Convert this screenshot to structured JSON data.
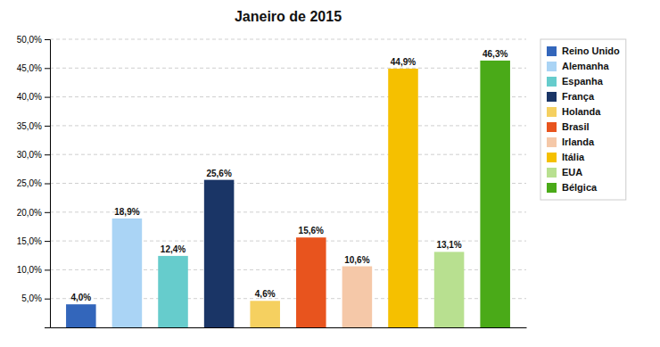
{
  "chart_data": {
    "type": "bar",
    "title": "Janeiro de 2015",
    "categories": [
      "Reino Unido",
      "Alemanha",
      "Espanha",
      "França",
      "Holanda",
      "Brasil",
      "Irlanda",
      "Itália",
      "EUA",
      "Bélgica"
    ],
    "values": [
      4.0,
      18.9,
      12.4,
      25.6,
      4.6,
      15.6,
      10.6,
      44.9,
      13.1,
      46.3
    ],
    "value_labels": [
      "4,0%",
      "18,9%",
      "12,4%",
      "25,6%",
      "4,6%",
      "15,6%",
      "10,6%",
      "44,9%",
      "13,1%",
      "46,3%"
    ],
    "colors": [
      "#3366bb",
      "#aad4f5",
      "#66cccc",
      "#1a3566",
      "#f5d060",
      "#e8541e",
      "#f5c8a8",
      "#f5c000",
      "#b8e090",
      "#4aaa18"
    ],
    "ylim": [
      0,
      50
    ],
    "yticks": [
      {
        "value": 5.0,
        "label": "5,0%"
      },
      {
        "value": 10.0,
        "label": "10,0%"
      },
      {
        "value": 15.0,
        "label": "15,0%"
      },
      {
        "value": 20.0,
        "label": "20,0%"
      },
      {
        "value": 25.0,
        "label": "25,0%"
      },
      {
        "value": 30.0,
        "label": "30,0%"
      },
      {
        "value": 35.0,
        "label": "35,0%"
      },
      {
        "value": 40.0,
        "label": "40,0%"
      },
      {
        "value": 45.0,
        "label": "45,0%"
      },
      {
        "value": 50.0,
        "label": "50,0%"
      }
    ],
    "grid": true,
    "legend": "right",
    "data_labels": true,
    "tick_labels": "y"
  }
}
